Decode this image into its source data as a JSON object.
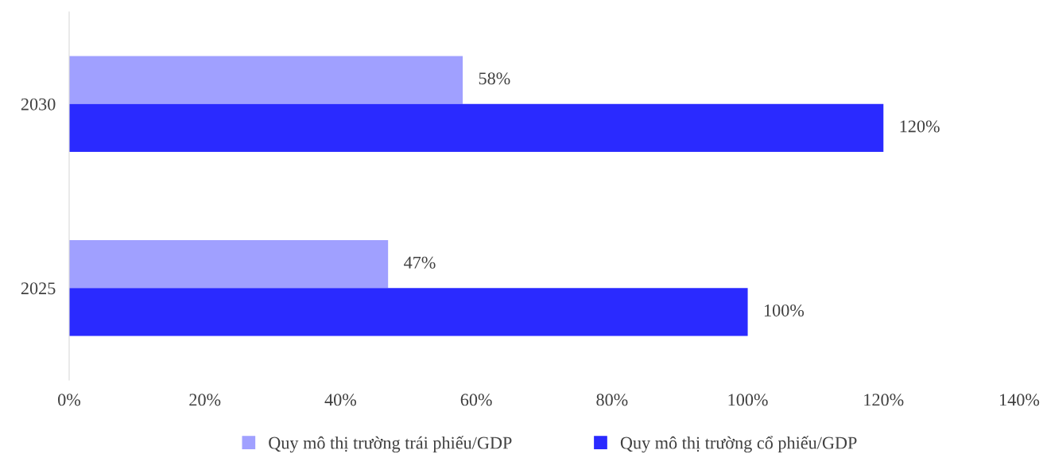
{
  "chart_data": {
    "type": "bar",
    "orientation": "horizontal",
    "categories": [
      "2030",
      "2025"
    ],
    "series": [
      {
        "name": "Quy mô thị trường trái phiếu/GDP",
        "color": "#a0a0ff",
        "values": [
          58,
          47
        ],
        "value_labels": [
          "58%",
          "47%"
        ]
      },
      {
        "name": "Quy mô thị trường cổ phiếu/GDP",
        "color": "#2a2aff",
        "values": [
          120,
          100
        ],
        "value_labels": [
          "120%",
          "100%"
        ]
      }
    ],
    "xlim": [
      0,
      140
    ],
    "xticks": [
      {
        "value": 0,
        "label": "0%"
      },
      {
        "value": 20,
        "label": "20%"
      },
      {
        "value": 40,
        "label": "40%"
      },
      {
        "value": 60,
        "label": "60%"
      },
      {
        "value": 80,
        "label": "80%"
      },
      {
        "value": 100,
        "label": "100%"
      },
      {
        "value": 120,
        "label": "120%"
      },
      {
        "value": 140,
        "label": "140%"
      }
    ],
    "grid": false,
    "legend": "bottom"
  }
}
